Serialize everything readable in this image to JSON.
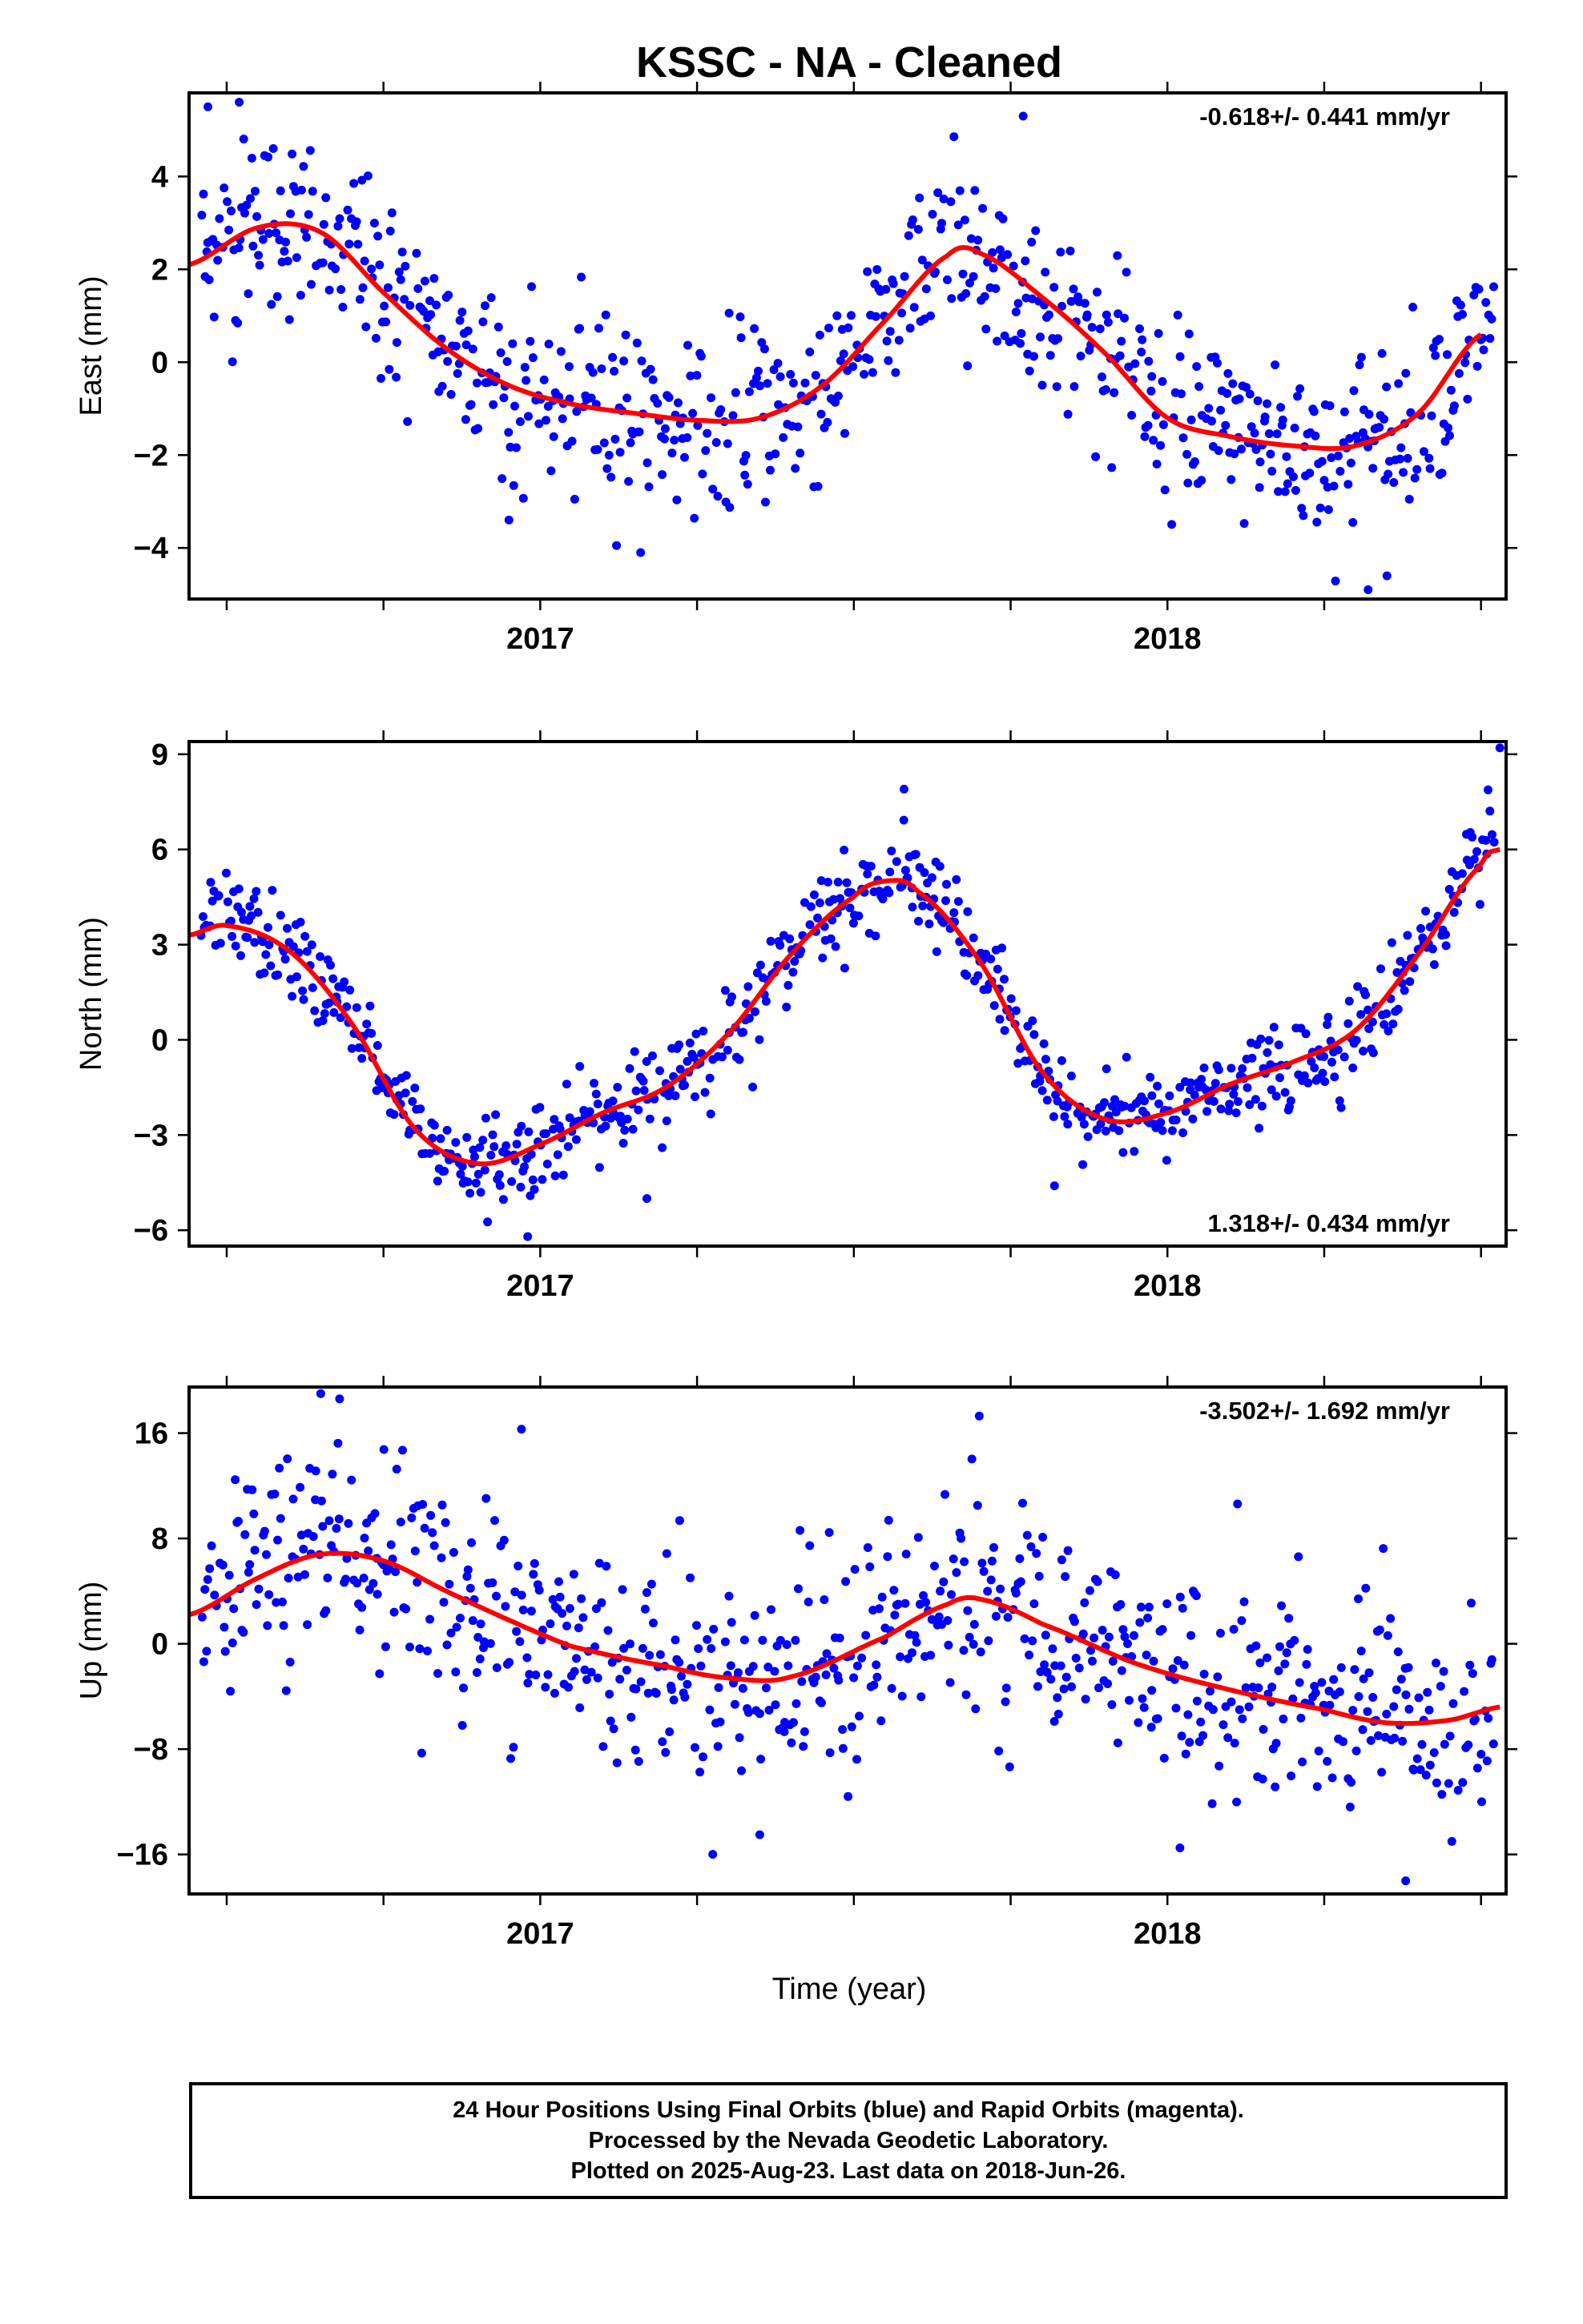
{
  "colors": {
    "points": "#0000ff",
    "fit": "#ff0000",
    "frame": "#000000"
  },
  "chart_data": {
    "type": "scatter",
    "title": "KSSC  - NA - Cleaned",
    "xlabel": "Time (year)",
    "x_tick_labels": [
      "2017",
      "2018"
    ],
    "xlim": [
      2016.44,
      2018.54
    ],
    "panels": [
      {
        "id": "east",
        "ylabel": "East (mm)",
        "ylim": [
          -5.1,
          5.8
        ],
        "yticks": [
          -4,
          -2,
          0,
          2,
          4
        ],
        "ytick_labels": [
          "−4",
          "−2",
          "0",
          "2",
          "4"
        ],
        "rate": "-0.618+/- 0.441 mm/yr",
        "rate_position": "top-right",
        "fit_knots": [
          [
            2016.44,
            2.1
          ],
          [
            2016.55,
            2.9
          ],
          [
            2016.65,
            2.8
          ],
          [
            2016.75,
            1.5
          ],
          [
            2016.85,
            0.3
          ],
          [
            2016.95,
            -0.5
          ],
          [
            2017.05,
            -0.9
          ],
          [
            2017.15,
            -1.1
          ],
          [
            2017.25,
            -1.25
          ],
          [
            2017.35,
            -1.2
          ],
          [
            2017.45,
            -0.5
          ],
          [
            2017.55,
            0.9
          ],
          [
            2017.65,
            2.3
          ],
          [
            2017.7,
            2.35
          ],
          [
            2017.8,
            1.4
          ],
          [
            2017.9,
            0.2
          ],
          [
            2018.0,
            -1.2
          ],
          [
            2018.1,
            -1.6
          ],
          [
            2018.2,
            -1.8
          ],
          [
            2018.3,
            -1.8
          ],
          [
            2018.4,
            -1.1
          ],
          [
            2018.5,
            0.6
          ]
        ],
        "points": {
          "count": 800,
          "noise": 1.0,
          "outliers": [
            [
              2016.47,
              5.5
            ],
            [
              2016.52,
              5.6
            ],
            [
              2017.16,
              -4.1
            ],
            [
              2017.77,
              5.3
            ],
            [
              2018.32,
              -4.9
            ],
            [
              2018.35,
              -4.6
            ],
            [
              2016.95,
              -3.4
            ]
          ]
        }
      },
      {
        "id": "north",
        "ylabel": "North (mm)",
        "ylim": [
          -6.5,
          9.4
        ],
        "yticks": [
          -6,
          -3,
          0,
          3,
          6,
          9
        ],
        "ytick_labels": [
          "−6",
          "−3",
          "0",
          "3",
          "6",
          "9"
        ],
        "rate": "1.318+/- 0.434 mm/yr",
        "rate_position": "bottom-right",
        "fit_knots": [
          [
            2016.44,
            3.3
          ],
          [
            2016.5,
            3.6
          ],
          [
            2016.6,
            2.8
          ],
          [
            2016.7,
            0.5
          ],
          [
            2016.8,
            -2.8
          ],
          [
            2016.9,
            -3.9
          ],
          [
            2017.0,
            -3.3
          ],
          [
            2017.1,
            -2.3
          ],
          [
            2017.2,
            -1.5
          ],
          [
            2017.3,
            0.2
          ],
          [
            2017.4,
            2.7
          ],
          [
            2017.5,
            4.5
          ],
          [
            2017.55,
            5.0
          ],
          [
            2017.6,
            4.7
          ],
          [
            2017.7,
            2.5
          ],
          [
            2017.8,
            -1.0
          ],
          [
            2017.9,
            -2.5
          ],
          [
            2018.0,
            -2.3
          ],
          [
            2018.1,
            -1.4
          ],
          [
            2018.2,
            -0.7
          ],
          [
            2018.3,
            0.3
          ],
          [
            2018.4,
            2.7
          ],
          [
            2018.5,
            5.5
          ],
          [
            2018.53,
            6.0
          ]
        ],
        "points": {
          "count": 800,
          "noise": 0.7,
          "outliers": [
            [
              2018.53,
              9.2
            ],
            [
              2016.98,
              -6.2
            ],
            [
              2017.58,
              7.9
            ],
            [
              2017.82,
              -4.6
            ],
            [
              2017.17,
              -5.0
            ]
          ]
        }
      },
      {
        "id": "up",
        "ylabel": "Up (mm)",
        "ylim": [
          -19,
          19.5
        ],
        "yticks": [
          -16,
          -8,
          0,
          8,
          16
        ],
        "ytick_labels": [
          "−16",
          "−8",
          "0",
          "8",
          "16"
        ],
        "rate": "-3.502+/- 1.692 mm/yr",
        "rate_position": "top-right",
        "fit_knots": [
          [
            2016.44,
            2.2
          ],
          [
            2016.55,
            5.0
          ],
          [
            2016.65,
            6.8
          ],
          [
            2016.75,
            6.3
          ],
          [
            2016.85,
            4.0
          ],
          [
            2016.95,
            1.8
          ],
          [
            2017.05,
            -0.2
          ],
          [
            2017.2,
            -1.7
          ],
          [
            2017.3,
            -2.6
          ],
          [
            2017.4,
            -2.5
          ],
          [
            2017.55,
            0.5
          ],
          [
            2017.65,
            3.0
          ],
          [
            2017.7,
            3.4
          ],
          [
            2017.8,
            1.5
          ],
          [
            2017.95,
            -1.5
          ],
          [
            2018.1,
            -3.5
          ],
          [
            2018.25,
            -5.0
          ],
          [
            2018.35,
            -6.0
          ],
          [
            2018.45,
            -5.8
          ],
          [
            2018.53,
            -4.8
          ]
        ],
        "points": {
          "count": 800,
          "noise": 4.0,
          "outliers": [
            [
              2016.65,
              19.0
            ],
            [
              2016.68,
              18.6
            ],
            [
              2017.7,
              17.3
            ],
            [
              2018.38,
              -18.0
            ],
            [
              2017.35,
              -14.5
            ],
            [
              2018.02,
              -15.5
            ],
            [
              2016.97,
              16.3
            ]
          ]
        }
      }
    ]
  },
  "footer": {
    "line1": "24 Hour Positions Using Final Orbits (blue) and Rapid Orbits (magenta).",
    "line2": "Processed by the Nevada Geodetic Laboratory.",
    "line3": "Plotted on 2025-Aug-23. Last data on 2018-Jun-26."
  }
}
